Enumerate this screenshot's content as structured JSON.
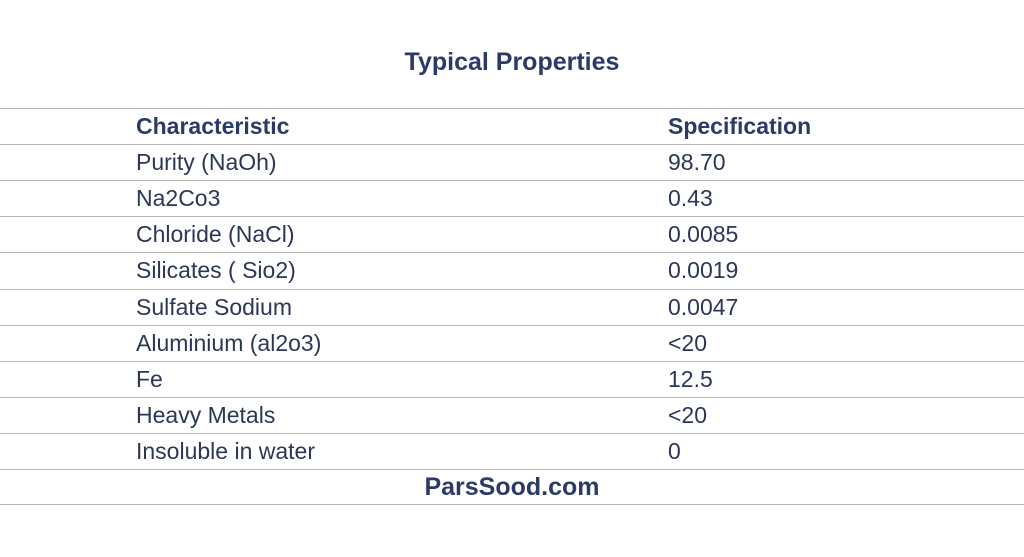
{
  "header": {
    "title": "Typical Properties"
  },
  "table": {
    "columns": [
      "Characteristic",
      "Specification"
    ],
    "rows": [
      [
        "Purity (NaOh)",
        "98.70"
      ],
      [
        "Na2Co3",
        "0.43"
      ],
      [
        "Chloride (NaCl)",
        "0.0085"
      ],
      [
        "Silicates ( Sio2)",
        "0.0019"
      ],
      [
        "Sulfate Sodium",
        "0.0047"
      ],
      [
        "Aluminium (al2o3)",
        "<20"
      ],
      [
        "Fe",
        "12.5"
      ],
      [
        "Heavy Metals",
        "<20"
      ],
      [
        "Insoluble in water",
        "0"
      ]
    ]
  },
  "footer": {
    "text": "ParsSood.com"
  }
}
